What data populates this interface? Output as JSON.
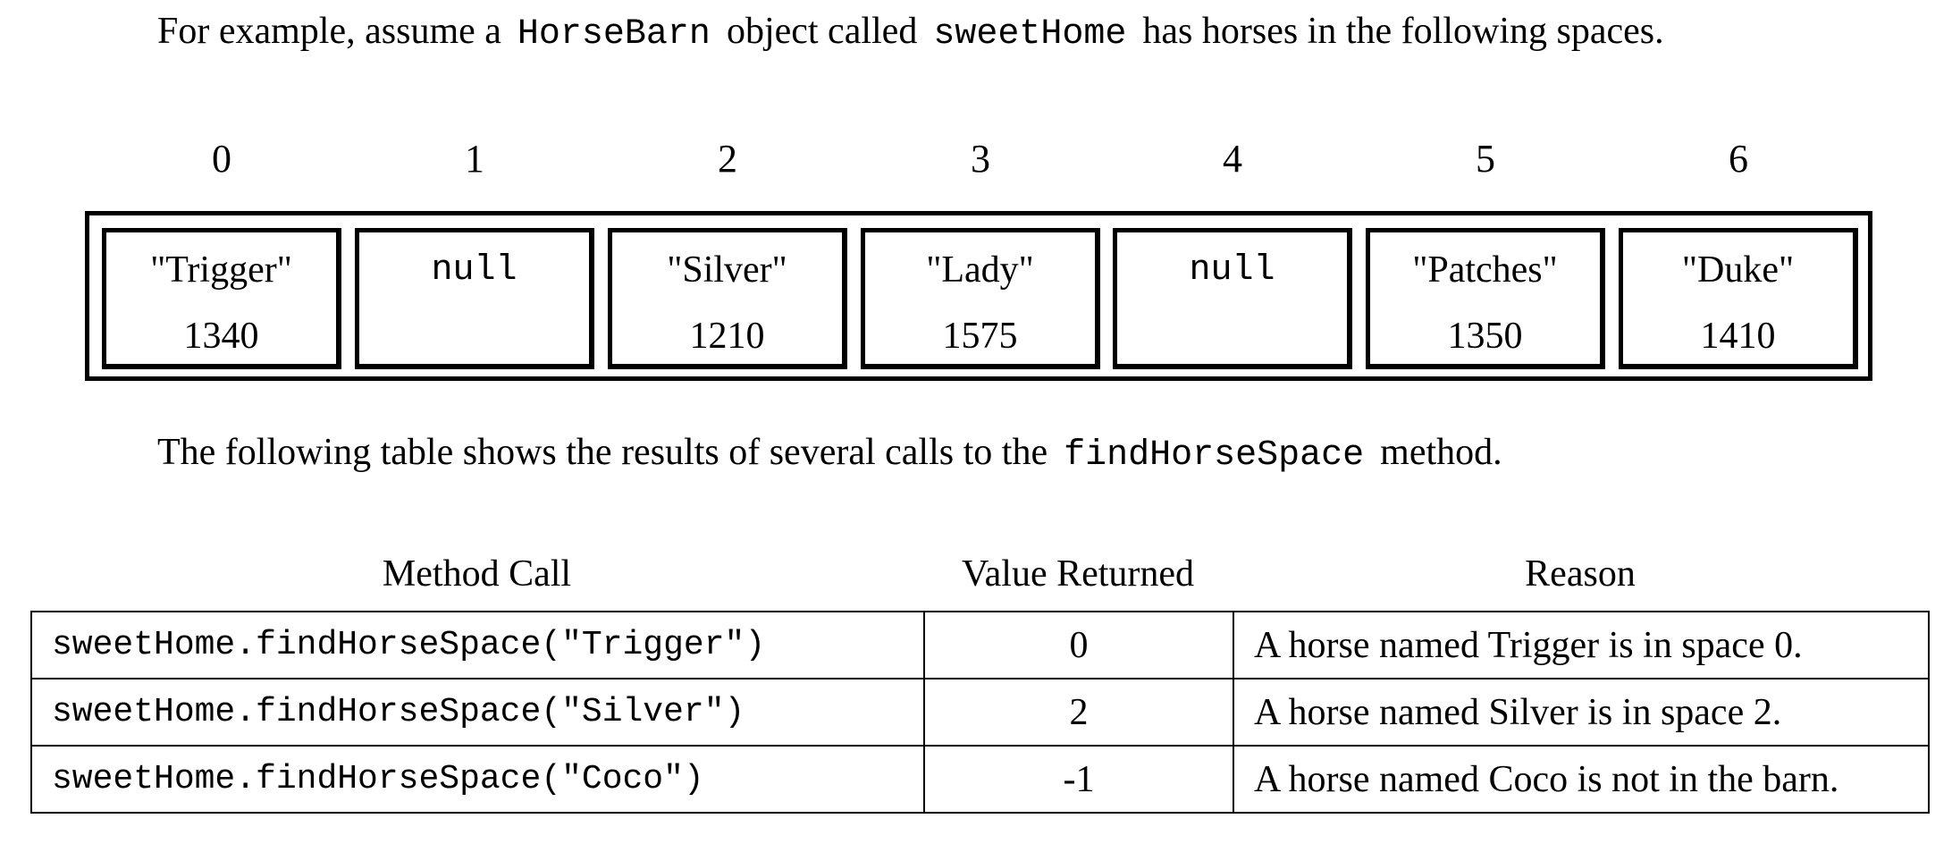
{
  "intro": {
    "before": "For example, assume a",
    "class_name": "HorseBarn",
    "middle": "object called",
    "object_name": "sweetHome",
    "after": "has horses in the following spaces."
  },
  "barn": {
    "indices": [
      "0",
      "1",
      "2",
      "3",
      "4",
      "5",
      "6"
    ],
    "spaces": [
      {
        "name": "\"Trigger\"",
        "weight": "1340"
      },
      {
        "null": "null"
      },
      {
        "name": "\"Silver\"",
        "weight": "1210"
      },
      {
        "name": "\"Lady\"",
        "weight": "1575"
      },
      {
        "null": "null"
      },
      {
        "name": "\"Patches\"",
        "weight": "1350"
      },
      {
        "name": "\"Duke\"",
        "weight": "1410"
      }
    ]
  },
  "table_intro": {
    "before": "The following table shows the results of several calls to the",
    "method_name": "findHorseSpace",
    "after": "method."
  },
  "results": {
    "headers": {
      "call": "Method Call",
      "value": "Value Returned",
      "reason": "Reason"
    },
    "rows": [
      {
        "call": "sweetHome.findHorseSpace(\"Trigger\")",
        "value": "0",
        "reason": "A horse named Trigger is in space 0."
      },
      {
        "call": "sweetHome.findHorseSpace(\"Silver\")",
        "value": "2",
        "reason": "A horse named Silver is in space 2."
      },
      {
        "call": "sweetHome.findHorseSpace(\"Coco\")",
        "value": "-1",
        "reason": "A horse named Coco is not in the barn."
      }
    ]
  }
}
